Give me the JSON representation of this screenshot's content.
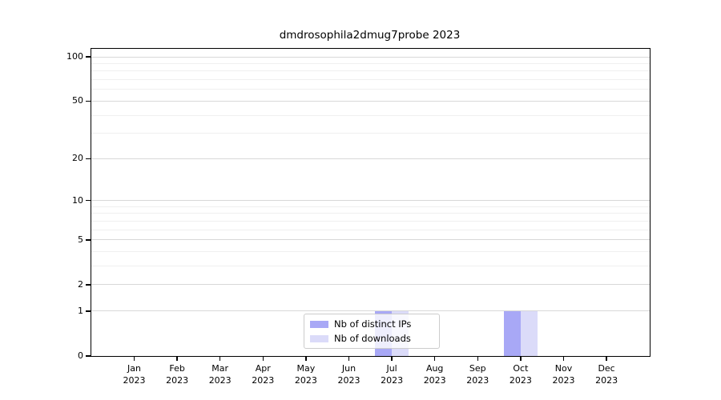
{
  "figure": {
    "background": "#ffffff"
  },
  "chart_data": {
    "type": "bar",
    "title": "dmdrosophila2dmug7probe 2023",
    "categories": [
      "Jan 2023",
      "Feb 2023",
      "Mar 2023",
      "Apr 2023",
      "May 2023",
      "Jun 2023",
      "Jul 2023",
      "Aug 2023",
      "Sep 2023",
      "Oct 2023",
      "Nov 2023",
      "Dec 2023"
    ],
    "series": [
      {
        "name": "Nb of distinct IPs",
        "color": "#a8a8f6",
        "values": [
          0,
          0,
          0,
          0,
          0,
          0,
          1,
          0,
          0,
          1,
          0,
          0
        ]
      },
      {
        "name": "Nb of downloads",
        "color": "#dbdbf9",
        "values": [
          0,
          0,
          0,
          0,
          0,
          0,
          1,
          0,
          0,
          1,
          0,
          0
        ]
      }
    ],
    "y_axis": {
      "scale": "log1p",
      "range": [
        0,
        100
      ],
      "ticks": [
        0,
        1,
        2,
        5,
        10,
        20,
        50,
        100
      ],
      "minor_gridlines": [
        3,
        4,
        6,
        7,
        8,
        9,
        30,
        40,
        60,
        70,
        80,
        90
      ]
    },
    "legend": {
      "position": "bottom-center"
    },
    "grid": {
      "major_color": "#d8d8d8",
      "minor_color": "#f0f0f0"
    },
    "xlabel": "",
    "ylabel": ""
  }
}
